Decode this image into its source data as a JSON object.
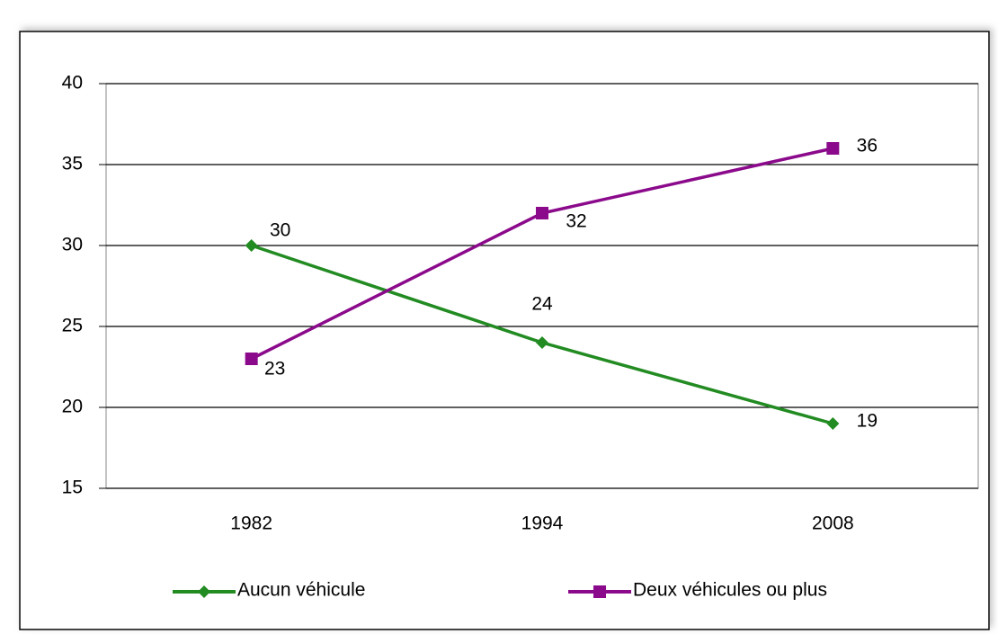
{
  "chart_data": {
    "type": "line",
    "categories": [
      "1982",
      "1994",
      "2008"
    ],
    "series": [
      {
        "name": "Aucun véhicule",
        "color": "#228b22",
        "marker": "diamond",
        "values": [
          30,
          24,
          19
        ]
      },
      {
        "name": "Deux véhicules ou plus",
        "color": "#8b0a8b",
        "marker": "square",
        "values": [
          23,
          32,
          36
        ]
      }
    ],
    "ylim": [
      15,
      40
    ],
    "yticks": [
      15,
      20,
      25,
      30,
      35,
      40
    ],
    "grid": true,
    "legend": "bottom"
  }
}
